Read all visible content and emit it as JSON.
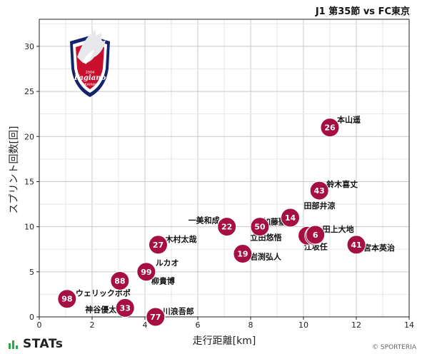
{
  "match_title": "J1 第35節 vs FC東京",
  "chart_data": {
    "type": "scatter",
    "title": "J1 第35節 vs FC東京",
    "xlabel": "走行距離[km]",
    "ylabel": "スプリント回数[回]",
    "xlim": [
      0,
      14
    ],
    "ylim": [
      0,
      33
    ],
    "xticks": [
      0,
      2,
      4,
      6,
      8,
      10,
      12,
      14
    ],
    "yticks": [
      0,
      5,
      10,
      15,
      20,
      25,
      30
    ],
    "grid": true,
    "marker_color": "#a51040",
    "points": [
      {
        "number": "26",
        "name": "本山遥",
        "x": 11.0,
        "y": 21
      },
      {
        "number": "43",
        "name": "鈴木喜丈",
        "x": 10.6,
        "y": 14
      },
      {
        "number": "14",
        "name": "田部井涼",
        "x": 9.5,
        "y": 11
      },
      {
        "number": "50",
        "name": "加藤聖",
        "x": 8.35,
        "y": 10
      },
      {
        "number": "22",
        "name": "一美和成",
        "x": 7.1,
        "y": 10
      },
      {
        "number": "8",
        "name": "立田悠悟",
        "x": 10.15,
        "y": 9
      },
      {
        "number": "18",
        "name": "江坂任",
        "x": 10.4,
        "y": 9
      },
      {
        "number": "6",
        "name": "田上大地",
        "x": 10.45,
        "y": 9.1
      },
      {
        "number": "41",
        "name": "宮本英治",
        "x": 12.0,
        "y": 8
      },
      {
        "number": "27",
        "name": "木村太哉",
        "x": 4.5,
        "y": 8
      },
      {
        "number": "19",
        "name": "岩渕弘人",
        "x": 7.7,
        "y": 7
      },
      {
        "number": "99",
        "name": "ルカオ",
        "x": 4.05,
        "y": 5
      },
      {
        "number": "88",
        "name": "柳貴博",
        "x": 3.05,
        "y": 4
      },
      {
        "number": "98",
        "name": "ウェリックポポ",
        "x": 1.05,
        "y": 2
      },
      {
        "number": "33",
        "name": "神谷優太",
        "x": 3.25,
        "y": 1
      },
      {
        "number": "77",
        "name": "川浪吾郎",
        "x": 4.4,
        "y": 0
      }
    ]
  },
  "brand": {
    "name": "STATs"
  },
  "copyright": "© SPORTERIA",
  "logo": {
    "est_text": "2004",
    "wordmark": "Fagiano",
    "city": "OKAYAMA"
  }
}
